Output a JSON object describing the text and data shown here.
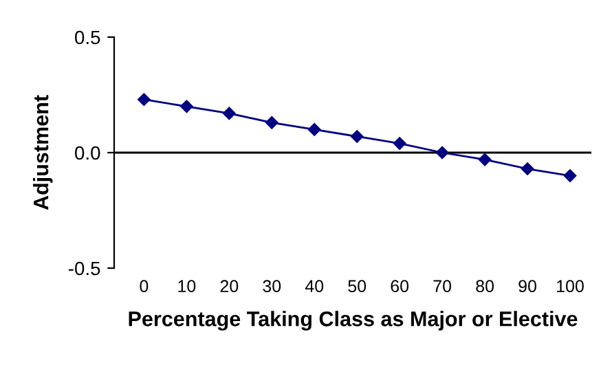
{
  "chart_data": {
    "type": "line",
    "xlabel": "Percentage Taking Class as Major or Elective",
    "ylabel": "Adjustment",
    "x": [
      0,
      10,
      20,
      30,
      40,
      50,
      60,
      70,
      80,
      90,
      100
    ],
    "series": [
      {
        "color": "#000080",
        "values": [
          0.23,
          0.2,
          0.17,
          0.13,
          0.1,
          0.07,
          0.04,
          0.0,
          -0.03,
          -0.07,
          -0.1
        ]
      }
    ],
    "xlim": [
      -7,
      105
    ],
    "xticks": [
      0,
      10,
      20,
      30,
      40,
      50,
      60,
      70,
      80,
      90,
      100
    ],
    "ylim": [
      -0.5,
      0.5
    ],
    "yticks": [
      {
        "value": -0.5,
        "label": "-0.5"
      },
      {
        "value": 0,
        "label": "0.0"
      },
      {
        "value": 0.5,
        "label": "0.5"
      }
    ],
    "ref_lines": [
      {
        "axis": "y",
        "value": 0,
        "color": "#000000"
      }
    ],
    "marker": "diamond",
    "line_style": "solid",
    "grid": false,
    "legend": false
  }
}
